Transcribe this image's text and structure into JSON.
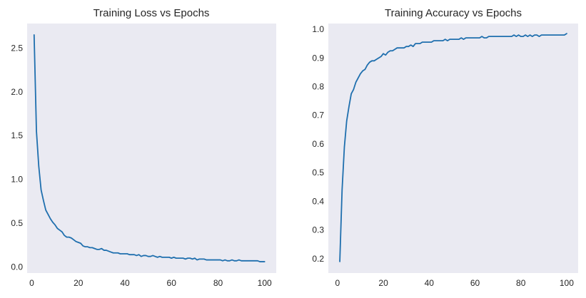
{
  "chart_data": [
    {
      "type": "line",
      "title": "Training Loss vs Epochs",
      "xlabel": "",
      "ylabel": "",
      "xlim": [
        -2,
        105
      ],
      "ylim": [
        -0.07,
        2.78
      ],
      "xticks": [
        0,
        20,
        40,
        60,
        80,
        100
      ],
      "yticks": [
        0.0,
        0.5,
        1.0,
        1.5,
        2.0,
        2.5
      ],
      "xtick_labels": [
        "0",
        "20",
        "40",
        "60",
        "80",
        "100"
      ],
      "ytick_labels": [
        "0.0",
        "0.5",
        "1.0",
        "1.5",
        "2.0",
        "2.5"
      ],
      "grid": false,
      "color": "#1f6fae",
      "series": [
        {
          "x": [
            1,
            2,
            3,
            4,
            5,
            6,
            7,
            8,
            9,
            10,
            11,
            12,
            13,
            14,
            15,
            16,
            17,
            18,
            19,
            20,
            21,
            22,
            23,
            24,
            25,
            26,
            27,
            28,
            29,
            30,
            31,
            32,
            33,
            34,
            35,
            36,
            37,
            38,
            39,
            40,
            41,
            42,
            43,
            44,
            45,
            46,
            47,
            48,
            49,
            50,
            51,
            52,
            53,
            54,
            55,
            56,
            57,
            58,
            59,
            60,
            61,
            62,
            63,
            64,
            65,
            66,
            67,
            68,
            69,
            70,
            71,
            72,
            73,
            74,
            75,
            76,
            77,
            78,
            79,
            80,
            81,
            82,
            83,
            84,
            85,
            86,
            87,
            88,
            89,
            90,
            91,
            92,
            93,
            94,
            95,
            96,
            97,
            98,
            99,
            100
          ],
          "values": [
            2.65,
            1.55,
            1.15,
            0.88,
            0.76,
            0.65,
            0.6,
            0.55,
            0.51,
            0.48,
            0.44,
            0.42,
            0.4,
            0.36,
            0.34,
            0.34,
            0.33,
            0.31,
            0.29,
            0.28,
            0.27,
            0.24,
            0.23,
            0.23,
            0.22,
            0.22,
            0.21,
            0.2,
            0.2,
            0.21,
            0.19,
            0.19,
            0.18,
            0.17,
            0.16,
            0.16,
            0.16,
            0.15,
            0.15,
            0.15,
            0.15,
            0.14,
            0.14,
            0.14,
            0.13,
            0.14,
            0.12,
            0.13,
            0.13,
            0.12,
            0.12,
            0.13,
            0.12,
            0.11,
            0.12,
            0.11,
            0.11,
            0.11,
            0.11,
            0.1,
            0.11,
            0.1,
            0.1,
            0.1,
            0.1,
            0.09,
            0.1,
            0.1,
            0.09,
            0.1,
            0.08,
            0.09,
            0.09,
            0.09,
            0.08,
            0.08,
            0.08,
            0.08,
            0.08,
            0.08,
            0.08,
            0.07,
            0.08,
            0.07,
            0.07,
            0.08,
            0.07,
            0.07,
            0.08,
            0.07,
            0.07,
            0.07,
            0.07,
            0.07,
            0.07,
            0.07,
            0.07,
            0.06,
            0.06,
            0.06
          ]
        }
      ]
    },
    {
      "type": "line",
      "title": "Training Accuracy vs Epochs",
      "xlabel": "",
      "ylabel": "",
      "xlim": [
        -4,
        105
      ],
      "ylim": [
        0.15,
        1.02
      ],
      "xticks": [
        0,
        20,
        40,
        60,
        80,
        100
      ],
      "yticks": [
        0.2,
        0.3,
        0.4,
        0.5,
        0.6,
        0.7,
        0.8,
        0.9,
        1.0
      ],
      "xtick_labels": [
        "0",
        "20",
        "40",
        "60",
        "80",
        "100"
      ],
      "ytick_labels": [
        "0.2",
        "0.3",
        "0.4",
        "0.5",
        "0.6",
        "0.7",
        "0.8",
        "0.9",
        "1.0"
      ],
      "grid": false,
      "color": "#1f6fae",
      "series": [
        {
          "x": [
            1,
            2,
            3,
            4,
            5,
            6,
            7,
            8,
            9,
            10,
            11,
            12,
            13,
            14,
            15,
            16,
            17,
            18,
            19,
            20,
            21,
            22,
            23,
            24,
            25,
            26,
            27,
            28,
            29,
            30,
            31,
            32,
            33,
            34,
            35,
            36,
            37,
            38,
            39,
            40,
            41,
            42,
            43,
            44,
            45,
            46,
            47,
            48,
            49,
            50,
            51,
            52,
            53,
            54,
            55,
            56,
            57,
            58,
            59,
            60,
            61,
            62,
            63,
            64,
            65,
            66,
            67,
            68,
            69,
            70,
            71,
            72,
            73,
            74,
            75,
            76,
            77,
            78,
            79,
            80,
            81,
            82,
            83,
            84,
            85,
            86,
            87,
            88,
            89,
            90,
            91,
            92,
            93,
            94,
            95,
            96,
            97,
            98,
            99,
            100
          ],
          "values": [
            0.19,
            0.44,
            0.59,
            0.68,
            0.73,
            0.775,
            0.79,
            0.815,
            0.83,
            0.845,
            0.855,
            0.86,
            0.875,
            0.885,
            0.89,
            0.89,
            0.895,
            0.9,
            0.905,
            0.915,
            0.91,
            0.92,
            0.925,
            0.925,
            0.93,
            0.935,
            0.935,
            0.935,
            0.935,
            0.94,
            0.94,
            0.945,
            0.94,
            0.95,
            0.95,
            0.95,
            0.955,
            0.955,
            0.955,
            0.955,
            0.955,
            0.96,
            0.96,
            0.96,
            0.96,
            0.96,
            0.965,
            0.96,
            0.965,
            0.965,
            0.965,
            0.965,
            0.965,
            0.97,
            0.965,
            0.97,
            0.97,
            0.97,
            0.97,
            0.97,
            0.97,
            0.97,
            0.975,
            0.97,
            0.97,
            0.975,
            0.975,
            0.975,
            0.975,
            0.975,
            0.975,
            0.975,
            0.975,
            0.975,
            0.975,
            0.975,
            0.98,
            0.975,
            0.98,
            0.975,
            0.975,
            0.98,
            0.975,
            0.98,
            0.975,
            0.98,
            0.98,
            0.975,
            0.98,
            0.98,
            0.98,
            0.98,
            0.98,
            0.98,
            0.98,
            0.98,
            0.98,
            0.98,
            0.98,
            0.985
          ]
        }
      ]
    }
  ]
}
